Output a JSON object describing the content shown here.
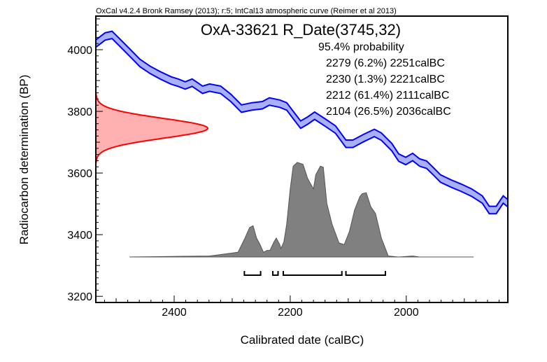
{
  "chart_data": {
    "type": "area",
    "header": "OxCal v4.2.4 Bronk Ramsey (2013); r:5; IntCal13 atmospheric curve (Reimer et al 2013)",
    "title": "OxA-33621 R_Date(3745,32)",
    "xlabel": "Calibrated date (calBC)",
    "ylabel": "Radiocarbon determination (BP)",
    "xlim": [
      2535,
      1825
    ],
    "ylim": [
      3180,
      4109
    ],
    "x_ticks": [
      2400,
      2200,
      2000
    ],
    "y_ticks": [
      4000,
      3800,
      3600,
      3400,
      3200
    ],
    "probability_label": "95.4% probability",
    "ranges": [
      {
        "text": "2279 (6.2%) 2251calBC",
        "from": 2279,
        "to": 2251
      },
      {
        "text": "2230 (1.3%) 2221calBC",
        "from": 2230,
        "to": 2221
      },
      {
        "text": "2212 (61.4%) 2111calBC",
        "from": 2212,
        "to": 2111
      },
      {
        "text": "2104 (26.5%) 2036calBC",
        "from": 2104,
        "to": 2036
      }
    ],
    "radiocarbon_date": {
      "mean": 3745,
      "sigma": 32
    },
    "calibration_curve": {
      "half_width": 12,
      "points": [
        [
          2535,
          4020
        ],
        [
          2519,
          4043
        ],
        [
          2507,
          4048
        ],
        [
          2489,
          4014
        ],
        [
          2471,
          3980
        ],
        [
          2459,
          3957
        ],
        [
          2441,
          3934
        ],
        [
          2423,
          3916
        ],
        [
          2405,
          3900
        ],
        [
          2393,
          3893
        ],
        [
          2381,
          3884
        ],
        [
          2369,
          3893
        ],
        [
          2351,
          3870
        ],
        [
          2339,
          3877
        ],
        [
          2320,
          3870
        ],
        [
          2302,
          3843
        ],
        [
          2284,
          3809
        ],
        [
          2266,
          3816
        ],
        [
          2248,
          3820
        ],
        [
          2236,
          3832
        ],
        [
          2218,
          3825
        ],
        [
          2206,
          3816
        ],
        [
          2194,
          3786
        ],
        [
          2182,
          3757
        ],
        [
          2170,
          3770
        ],
        [
          2158,
          3786
        ],
        [
          2140,
          3764
        ],
        [
          2122,
          3741
        ],
        [
          2104,
          3695
        ],
        [
          2092,
          3695
        ],
        [
          2073,
          3714
        ],
        [
          2055,
          3730
        ],
        [
          2043,
          3718
        ],
        [
          2025,
          3684
        ],
        [
          2013,
          3650
        ],
        [
          2001,
          3639
        ],
        [
          1989,
          3652
        ],
        [
          1977,
          3634
        ],
        [
          1965,
          3627
        ],
        [
          1953,
          3605
        ],
        [
          1941,
          3582
        ],
        [
          1923,
          3566
        ],
        [
          1905,
          3552
        ],
        [
          1887,
          3536
        ],
        [
          1869,
          3514
        ],
        [
          1857,
          3480
        ],
        [
          1845,
          3480
        ],
        [
          1833,
          3514
        ],
        [
          1825,
          3502
        ]
      ]
    },
    "posterior": {
      "points": [
        [
          2477,
          0
        ],
        [
          2339,
          0.01
        ],
        [
          2290,
          0.05
        ],
        [
          2278,
          0.2
        ],
        [
          2270,
          0.31
        ],
        [
          2264,
          0.33
        ],
        [
          2258,
          0.2
        ],
        [
          2252,
          0.13
        ],
        [
          2246,
          0.05
        ],
        [
          2240,
          0.07
        ],
        [
          2235,
          0.07
        ],
        [
          2228,
          0.16
        ],
        [
          2224,
          0.2
        ],
        [
          2218,
          0.13
        ],
        [
          2216,
          0.09
        ],
        [
          2211,
          0.16
        ],
        [
          2206,
          0.35
        ],
        [
          2200,
          0.72
        ],
        [
          2195,
          0.96
        ],
        [
          2188,
          1.0
        ],
        [
          2178,
          0.98
        ],
        [
          2170,
          0.83
        ],
        [
          2160,
          0.72
        ],
        [
          2156,
          0.87
        ],
        [
          2148,
          0.96
        ],
        [
          2143,
          0.95
        ],
        [
          2137,
          0.57
        ],
        [
          2128,
          0.35
        ],
        [
          2116,
          0.15
        ],
        [
          2107,
          0.13
        ],
        [
          2098,
          0.27
        ],
        [
          2089,
          0.5
        ],
        [
          2080,
          0.64
        ],
        [
          2076,
          0.67
        ],
        [
          2069,
          0.68
        ],
        [
          2061,
          0.53
        ],
        [
          2053,
          0.46
        ],
        [
          2043,
          0.2
        ],
        [
          2031,
          0.01
        ],
        [
          2013,
          0
        ],
        [
          1989,
          0.01
        ],
        [
          1977,
          0
        ],
        [
          1884,
          0
        ]
      ]
    },
    "colors": {
      "curve": "#0000ff",
      "curve_fill": "#aab0f5",
      "date": "#ff0000",
      "date_fill": "#ffb0b0",
      "posterior": "#808080"
    }
  }
}
